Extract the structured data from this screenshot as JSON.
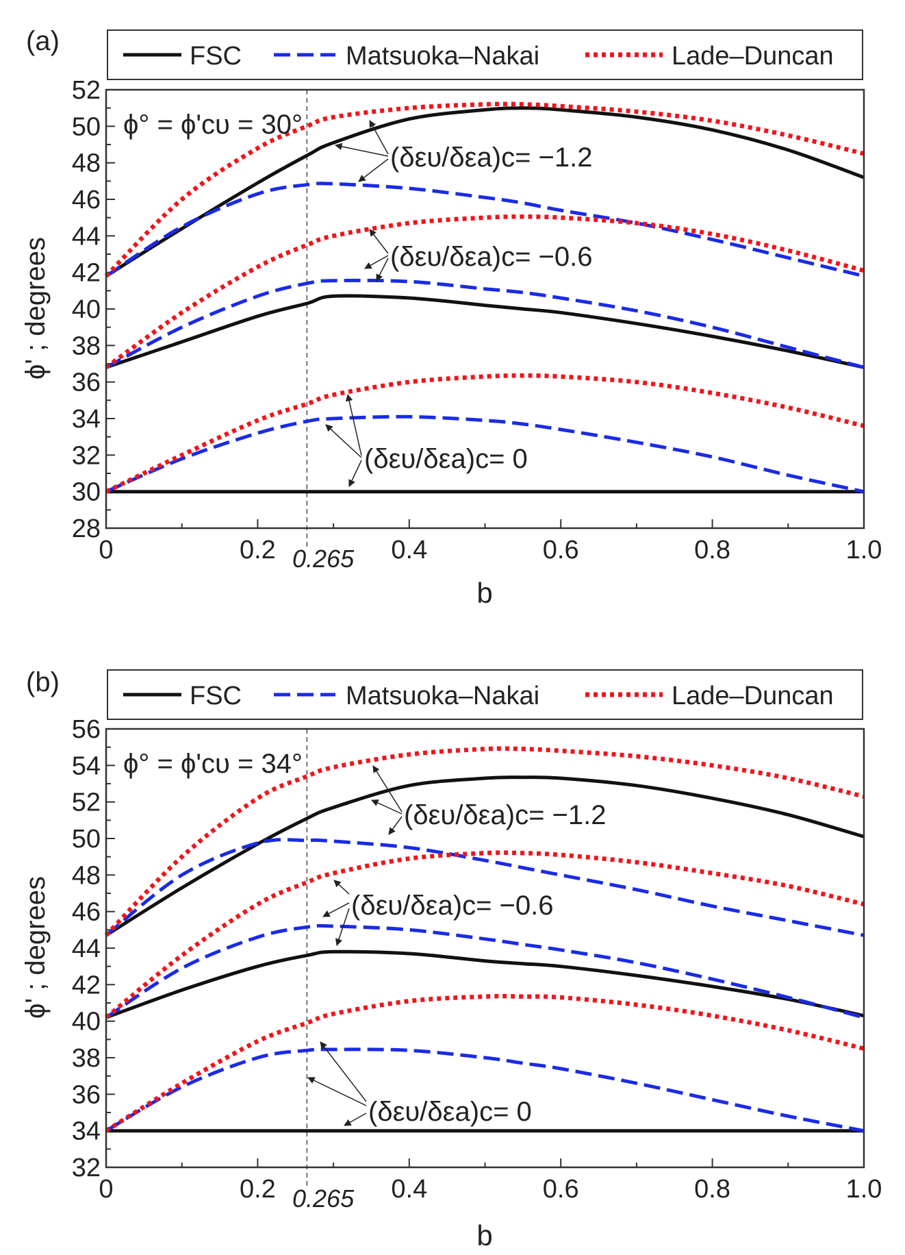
{
  "figure": {
    "panels": [
      {
        "id": "a",
        "panel_label": "(a)",
        "condition": "ϕ° = ϕ'cυ = 30°",
        "legend": [
          "FSC",
          "Matsuoka–Nakai",
          "Lade–Duncan"
        ],
        "xlabel": "b",
        "ylabel": "ϕ' ; degrees",
        "marker_label": "0.265",
        "annotations": [
          "(δευ/δεa)c= −1.2",
          "(δευ/δεa)c= −0.6",
          "(δευ/δεa)c= 0"
        ]
      },
      {
        "id": "b",
        "panel_label": "(b)",
        "condition": "ϕ° = ϕ'cυ = 34°",
        "legend": [
          "FSC",
          "Matsuoka–Nakai",
          "Lade–Duncan"
        ],
        "xlabel": "b",
        "ylabel": "ϕ' ; degrees",
        "marker_label": "0.265",
        "annotations": [
          "(δευ/δεa)c= −1.2",
          "(δευ/δεa)c= −0.6",
          "(δευ/δεa)c= 0"
        ]
      }
    ]
  },
  "colors": {
    "FSC": "#111111",
    "Matsuoka–Nakai": "#1a2be6",
    "Lade–Duncan": "#f0151b",
    "marker": "#555555"
  },
  "chart_data": [
    {
      "type": "line",
      "title": "(a) ϕ° = ϕ'cυ = 30°",
      "xlabel": "b",
      "ylabel": "ϕ' ; degrees",
      "xlim": [
        0,
        1.0
      ],
      "ylim": [
        28,
        52
      ],
      "xticks": [
        0,
        0.2,
        0.4,
        0.6,
        0.8,
        1.0
      ],
      "xtick_labels": [
        "0",
        "0.2",
        "0.4",
        "0.6",
        "0.8",
        "1.0"
      ],
      "yticks": [
        28,
        30,
        32,
        34,
        36,
        38,
        40,
        42,
        44,
        46,
        48,
        50,
        52
      ],
      "vline": 0.265,
      "x": [
        0,
        0.1,
        0.2,
        0.265,
        0.3,
        0.4,
        0.5,
        0.55,
        0.6,
        0.7,
        0.8,
        0.9,
        1.0
      ],
      "series": [
        {
          "name": "FSC",
          "group": "-1.2",
          "values": [
            41.8,
            44.4,
            46.9,
            48.4,
            49.1,
            50.4,
            50.9,
            51.0,
            50.9,
            50.5,
            49.8,
            48.7,
            47.2
          ]
        },
        {
          "name": "Matsuoka–Nakai",
          "group": "-1.2",
          "values": [
            41.8,
            44.5,
            46.3,
            46.8,
            46.85,
            46.6,
            46.1,
            45.8,
            45.4,
            44.7,
            43.8,
            42.8,
            41.8
          ]
        },
        {
          "name": "Lade–Duncan",
          "group": "-1.2",
          "values": [
            41.8,
            46.0,
            48.8,
            50.0,
            50.5,
            51.0,
            51.2,
            51.2,
            51.1,
            50.8,
            50.3,
            49.5,
            48.5
          ]
        },
        {
          "name": "FSC",
          "group": "-0.6",
          "values": [
            36.8,
            38.2,
            39.6,
            40.3,
            40.7,
            40.6,
            40.2,
            40.0,
            39.8,
            39.2,
            38.5,
            37.7,
            36.8
          ]
        },
        {
          "name": "Matsuoka–Nakai",
          "group": "-0.6",
          "values": [
            36.8,
            39.0,
            40.7,
            41.4,
            41.55,
            41.5,
            41.1,
            40.9,
            40.6,
            39.9,
            39.0,
            37.9,
            36.8
          ]
        },
        {
          "name": "Lade–Duncan",
          "group": "-0.6",
          "values": [
            36.8,
            39.8,
            42.3,
            43.5,
            44.0,
            44.7,
            45.0,
            45.05,
            45.0,
            44.7,
            44.1,
            43.2,
            42.1
          ]
        },
        {
          "name": "FSC",
          "group": "0",
          "values": [
            30.0,
            30.0,
            30.0,
            30.0,
            30.0,
            30.0,
            30.0,
            30.0,
            30.0,
            30.0,
            30.0,
            30.0,
            30.0
          ]
        },
        {
          "name": "Matsuoka–Nakai",
          "group": "0",
          "values": [
            30.0,
            31.8,
            33.2,
            33.85,
            34.0,
            34.1,
            33.9,
            33.7,
            33.4,
            32.7,
            31.9,
            30.9,
            30.0
          ]
        },
        {
          "name": "Lade–Duncan",
          "group": "0",
          "values": [
            30.0,
            32.0,
            33.9,
            34.8,
            35.3,
            36.0,
            36.3,
            36.35,
            36.3,
            36.0,
            35.4,
            34.6,
            33.6
          ]
        }
      ]
    },
    {
      "type": "line",
      "title": "(b) ϕ° = ϕ'cυ = 34°",
      "xlabel": "b",
      "ylabel": "ϕ' ; degrees",
      "xlim": [
        0,
        1.0
      ],
      "ylim": [
        32,
        56
      ],
      "xticks": [
        0,
        0.2,
        0.4,
        0.6,
        0.8,
        1.0
      ],
      "xtick_labels": [
        "0",
        "0.2",
        "0.4",
        "0.6",
        "0.8",
        "1.0"
      ],
      "yticks": [
        32,
        34,
        36,
        38,
        40,
        42,
        44,
        46,
        48,
        50,
        52,
        54,
        56
      ],
      "vline": 0.265,
      "x": [
        0,
        0.1,
        0.2,
        0.265,
        0.3,
        0.4,
        0.5,
        0.55,
        0.6,
        0.7,
        0.8,
        0.9,
        1.0
      ],
      "series": [
        {
          "name": "FSC",
          "group": "-1.2",
          "values": [
            44.7,
            47.3,
            49.7,
            51.1,
            51.7,
            52.9,
            53.3,
            53.35,
            53.3,
            52.9,
            52.2,
            51.3,
            50.1
          ]
        },
        {
          "name": "Matsuoka–Nakai",
          "group": "-1.2",
          "values": [
            44.7,
            48.0,
            49.75,
            49.9,
            49.85,
            49.5,
            48.8,
            48.4,
            48.0,
            47.2,
            46.3,
            45.5,
            44.7
          ]
        },
        {
          "name": "Lade–Duncan",
          "group": "-1.2",
          "values": [
            44.7,
            49.0,
            52.2,
            53.4,
            53.9,
            54.6,
            54.9,
            54.9,
            54.8,
            54.5,
            54.0,
            53.3,
            52.3
          ]
        },
        {
          "name": "FSC",
          "group": "-0.6",
          "values": [
            40.2,
            41.7,
            43.0,
            43.6,
            43.8,
            43.7,
            43.3,
            43.15,
            43.0,
            42.5,
            41.9,
            41.2,
            40.3
          ]
        },
        {
          "name": "Matsuoka–Nakai",
          "group": "-0.6",
          "values": [
            40.2,
            42.9,
            44.6,
            45.15,
            45.2,
            45.0,
            44.5,
            44.2,
            43.9,
            43.2,
            42.3,
            41.3,
            40.2
          ]
        },
        {
          "name": "Lade–Duncan",
          "group": "-0.6",
          "values": [
            40.2,
            43.6,
            46.4,
            47.6,
            48.1,
            48.9,
            49.2,
            49.2,
            49.1,
            48.7,
            48.1,
            47.4,
            46.4
          ]
        },
        {
          "name": "FSC",
          "group": "0",
          "values": [
            34.0,
            34.0,
            34.0,
            34.0,
            34.0,
            34.0,
            34.0,
            34.0,
            34.0,
            34.0,
            34.0,
            34.0,
            34.0
          ]
        },
        {
          "name": "Matsuoka–Nakai",
          "group": "0",
          "values": [
            34.0,
            36.4,
            38.0,
            38.4,
            38.45,
            38.4,
            38.0,
            37.7,
            37.4,
            36.6,
            35.7,
            34.8,
            34.0
          ]
        },
        {
          "name": "Lade–Duncan",
          "group": "0",
          "values": [
            34.0,
            36.6,
            38.9,
            39.9,
            40.4,
            41.1,
            41.35,
            41.35,
            41.3,
            40.9,
            40.3,
            39.5,
            38.5
          ]
        }
      ]
    }
  ]
}
